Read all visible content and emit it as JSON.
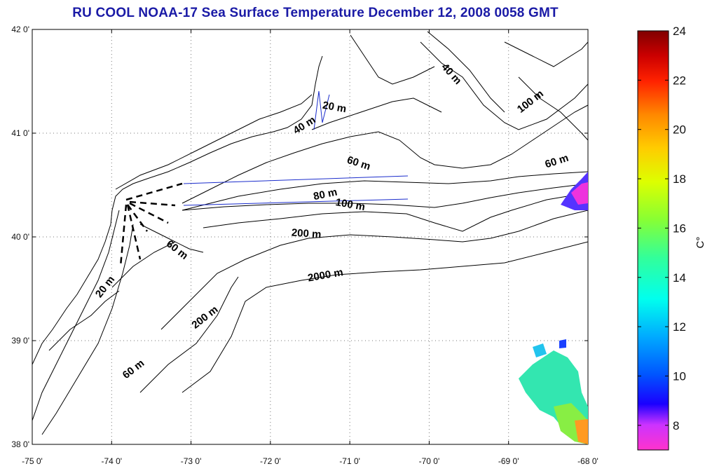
{
  "title": "RU COOL  NOAA-17 Sea Surface Temperature December 12, 2008 0058 GMT",
  "map": {
    "lon_ticks": [
      "-75 0'",
      "-74 0'",
      "-73 0'",
      "-72 0'",
      "-71 0'",
      "-70 0'",
      "-69 0'",
      "-68 0'"
    ],
    "lat_ticks": [
      "42 0'",
      "41 0'",
      "40 0'",
      "39 0'",
      "38 0'"
    ],
    "lon_range": [
      -75,
      -68
    ],
    "lat_range": [
      38,
      42
    ],
    "grid": "dotted",
    "contour_labels": [
      {
        "text": "20 m",
        "lon": -71.2,
        "lat": 41.22,
        "angle": 10
      },
      {
        "text": "40 m",
        "lon": -71.55,
        "lat": 41.05,
        "angle": -32
      },
      {
        "text": "40 m",
        "lon": -69.75,
        "lat": 41.55,
        "angle": 48
      },
      {
        "text": "100 m",
        "lon": -68.7,
        "lat": 41.28,
        "angle": -38
      },
      {
        "text": "60 m",
        "lon": -68.38,
        "lat": 40.7,
        "angle": -18
      },
      {
        "text": "60 m",
        "lon": -70.9,
        "lat": 40.68,
        "angle": 18
      },
      {
        "text": "80 m",
        "lon": -71.3,
        "lat": 40.38,
        "angle": -12
      },
      {
        "text": "100 m",
        "lon": -71.0,
        "lat": 40.28,
        "angle": 10
      },
      {
        "text": "200 m",
        "lon": -71.55,
        "lat": 40.0,
        "angle": 4
      },
      {
        "text": "60 m",
        "lon": -73.2,
        "lat": 39.85,
        "angle": 38
      },
      {
        "text": "2000 m",
        "lon": -71.3,
        "lat": 39.6,
        "angle": -10
      },
      {
        "text": "20 m",
        "lon": -74.05,
        "lat": 39.5,
        "angle": -52
      },
      {
        "text": "200 m",
        "lon": -72.8,
        "lat": 39.2,
        "angle": -38
      },
      {
        "text": "60 m",
        "lon": -73.7,
        "lat": 38.7,
        "angle": -38
      }
    ]
  },
  "colorbar": {
    "label": "C°",
    "ticks": [
      "24",
      "22",
      "20",
      "18",
      "16",
      "14",
      "12",
      "10",
      "8"
    ],
    "min": 7,
    "max": 24,
    "colors": [
      "#ff33cc",
      "#cc33ff",
      "#1a00ff",
      "#0055ff",
      "#00aaff",
      "#00ffee",
      "#33ff99",
      "#88ff33",
      "#ddff00",
      "#ffcc00",
      "#ff8800",
      "#ff2200",
      "#cc0000",
      "#800000"
    ]
  }
}
